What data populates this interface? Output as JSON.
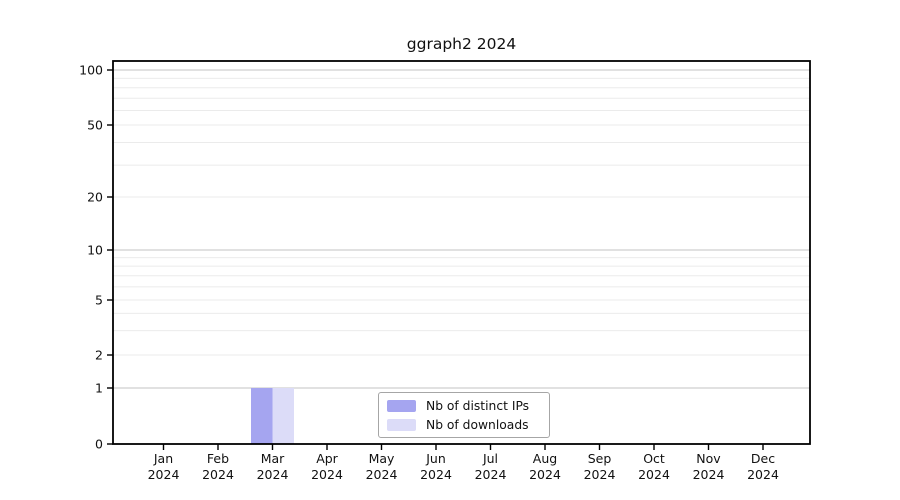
{
  "chart_data": {
    "type": "bar",
    "title": "ggraph2 2024",
    "categories": [
      {
        "month": "Jan",
        "year": "2024"
      },
      {
        "month": "Feb",
        "year": "2024"
      },
      {
        "month": "Mar",
        "year": "2024"
      },
      {
        "month": "Apr",
        "year": "2024"
      },
      {
        "month": "May",
        "year": "2024"
      },
      {
        "month": "Jun",
        "year": "2024"
      },
      {
        "month": "Jul",
        "year": "2024"
      },
      {
        "month": "Aug",
        "year": "2024"
      },
      {
        "month": "Sep",
        "year": "2024"
      },
      {
        "month": "Oct",
        "year": "2024"
      },
      {
        "month": "Nov",
        "year": "2024"
      },
      {
        "month": "Dec",
        "year": "2024"
      }
    ],
    "series": [
      {
        "name": "Nb of distinct IPs",
        "color": "#a5a5f0",
        "values": [
          0,
          0,
          1,
          0,
          0,
          0,
          0,
          0,
          0,
          0,
          0,
          0
        ]
      },
      {
        "name": "Nb of downloads",
        "color": "#dcdcf8",
        "values": [
          0,
          0,
          1,
          0,
          0,
          0,
          0,
          0,
          0,
          0,
          0,
          0
        ]
      }
    ],
    "y_axis": {
      "scale": "log-like",
      "ylim": [
        0,
        100
      ],
      "tick_labels": [
        100,
        50,
        20,
        10,
        5,
        2,
        1,
        0
      ],
      "gridlines_major": [
        100,
        10,
        1
      ],
      "gridlines_minor": [
        90,
        80,
        70,
        60,
        50,
        40,
        30,
        20,
        9,
        8,
        7,
        6,
        5,
        4,
        3,
        2
      ]
    },
    "legend_position": "lower center inside plot",
    "grid": "horizontal only",
    "colors": {
      "axis": "#000000",
      "grid_major": "#c3c3c3",
      "grid_minor": "#ebebeb",
      "text": "#111111",
      "background": "#ffffff"
    }
  }
}
